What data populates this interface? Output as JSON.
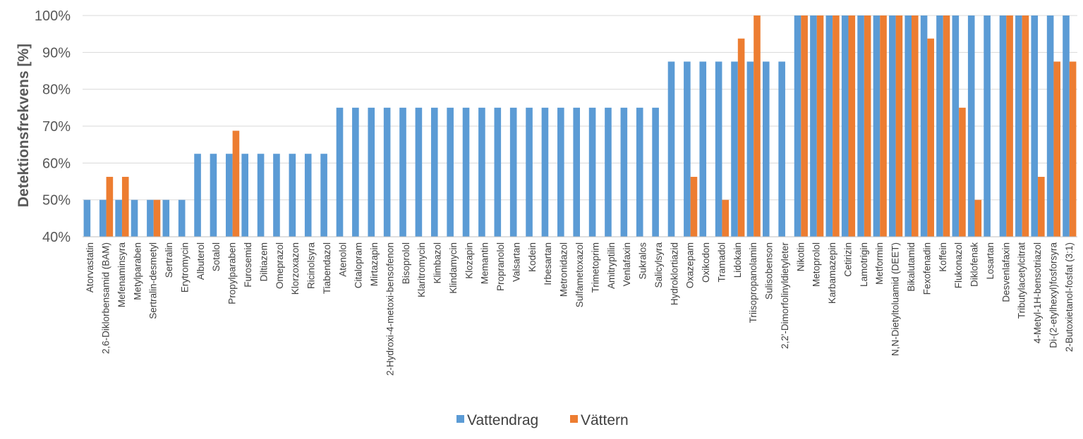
{
  "chart_data": {
    "type": "bar",
    "ylabel": "Detektionsfrekvens [%]",
    "ylim": [
      40,
      100
    ],
    "yticks": [
      40,
      50,
      60,
      70,
      80,
      90,
      100
    ],
    "ytick_labels": [
      "40%",
      "50%",
      "60%",
      "70%",
      "80%",
      "90%",
      "100%"
    ],
    "grid": true,
    "legend": "bottom",
    "categories": [
      "Atorvastatin",
      "2,6-Diklorbensamid (BAM)",
      "Mefenaminsyra",
      "Metylparaben",
      "Sertralin-desmetyl",
      "Sertralin",
      "Erytromycin",
      "Albuterol",
      "Sotalol",
      "Propylparaben",
      "Furosemid",
      "Diltiazem",
      "Omeprazol",
      "Klorzoxazon",
      "Ricinolsyra",
      "Tiabendazol",
      "Atenolol",
      "Citalopram",
      "Mirtazapin",
      "2-Hydroxi-4-metoxi-bensofenon",
      "Bisoprolol",
      "Klaritromycin",
      "Klimbazol",
      "Klindamycin",
      "Klozapin",
      "Memantin",
      "Propranolol",
      "Valsartan",
      "Kodein",
      "Irbesartan",
      "Metronidazol",
      "Sulfametoxazol",
      "Trimetoprim",
      "Amitryptilin",
      "Venlafaxin",
      "Sukralos",
      "Salicylsyra",
      "Hydroklortiazid",
      "Oxazepam",
      "Oxikodon",
      "Tramadol",
      "Lidokain",
      "Triisopropanolamin",
      "Sulisobenson",
      "2,2'-Dimorfolinyldietyleter",
      "Nikotin",
      "Metoprolol",
      "Karbamazepin",
      "Cetirizin",
      "Lamotrigin",
      "Metformin",
      "N,N-Dietyltoluamid (DEET)",
      "Bikalutamid",
      "Fexofenadin",
      "Koffein",
      "Flukonazol",
      "Diklofenak",
      "Losartan",
      "Desvenlafaxin",
      "Tributylacetylcitrat",
      "4-Metyl-1H-bensotriazol",
      "Di-(2-etylhexyl)fosforsyra",
      "2-Butoxietanol-fosfat (3:1)"
    ],
    "series": [
      {
        "name": "Vattendrag",
        "color": "#5b9bd5",
        "values": [
          50,
          50,
          50,
          50,
          50,
          50,
          50,
          62.5,
          62.5,
          62.5,
          62.5,
          62.5,
          62.5,
          62.5,
          62.5,
          62.5,
          75,
          75,
          75,
          75,
          75,
          75,
          75,
          75,
          75,
          75,
          75,
          75,
          75,
          75,
          75,
          75,
          75,
          75,
          75,
          75,
          75,
          87.5,
          87.5,
          87.5,
          87.5,
          87.5,
          87.5,
          87.5,
          87.5,
          100,
          100,
          100,
          100,
          100,
          100,
          100,
          100,
          100,
          100,
          100,
          100,
          100,
          100,
          100,
          100,
          100,
          100
        ]
      },
      {
        "name": "Vättern",
        "color": "#ed7d31",
        "values": [
          null,
          56.25,
          56.25,
          null,
          50,
          null,
          null,
          null,
          null,
          68.75,
          null,
          null,
          null,
          null,
          null,
          null,
          null,
          null,
          null,
          null,
          null,
          null,
          null,
          null,
          null,
          null,
          null,
          null,
          null,
          null,
          null,
          null,
          null,
          null,
          null,
          null,
          null,
          null,
          56.25,
          null,
          50,
          93.75,
          100,
          null,
          null,
          100,
          100,
          100,
          100,
          100,
          100,
          100,
          100,
          93.75,
          100,
          75,
          50,
          null,
          100,
          100,
          56.25,
          87.5,
          87.5
        ]
      }
    ]
  }
}
